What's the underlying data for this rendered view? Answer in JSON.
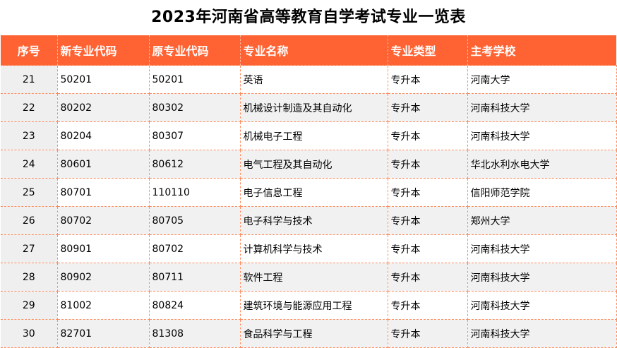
{
  "title": "2023年河南省高等教育自学考试专业一览表",
  "headers": [
    "序号",
    "新专业代码",
    "原专业代码",
    "专业名称",
    "专业类型",
    "主考学校"
  ],
  "rows": [
    [
      "21",
      "50201",
      "50201",
      "英语",
      "专升本",
      "河南大学"
    ],
    [
      "22",
      "80202",
      "80302",
      "机械设计制造及其自动化",
      "专升本",
      "河南科技大学"
    ],
    [
      "23",
      "80204",
      "80307",
      "机械电子工程",
      "专升本",
      "河南科技大学"
    ],
    [
      "24",
      "80601",
      "80612",
      "电气工程及其自动化",
      "专升本",
      "华北水利水电大学"
    ],
    [
      "25",
      "80701",
      "110110",
      "电子信息工程",
      "专升本",
      "信阳师范学院"
    ],
    [
      "26",
      "80702",
      "80705",
      "电子科学与技术",
      "专升本",
      "郑州大学"
    ],
    [
      "27",
      "80901",
      "80702",
      "计算机科学与技术",
      "专升本",
      "河南科技大学"
    ],
    [
      "28",
      "80902",
      "80711",
      "软件工程",
      "专升本",
      "河南科技大学"
    ],
    [
      "29",
      "81002",
      "80824",
      "建筑环境与能源应用工程",
      "专升本",
      "河南科技大学"
    ],
    [
      "30",
      "82701",
      "81308",
      "食品科学与工程",
      "专升本",
      "河南科技大学"
    ]
  ],
  "colors": {
    "header_bg": "#ff6333",
    "header_text": "#ffffff",
    "border": "#ff8a5c",
    "index_bg": "#efefef",
    "stripe_bg": "#f1f1f1"
  }
}
